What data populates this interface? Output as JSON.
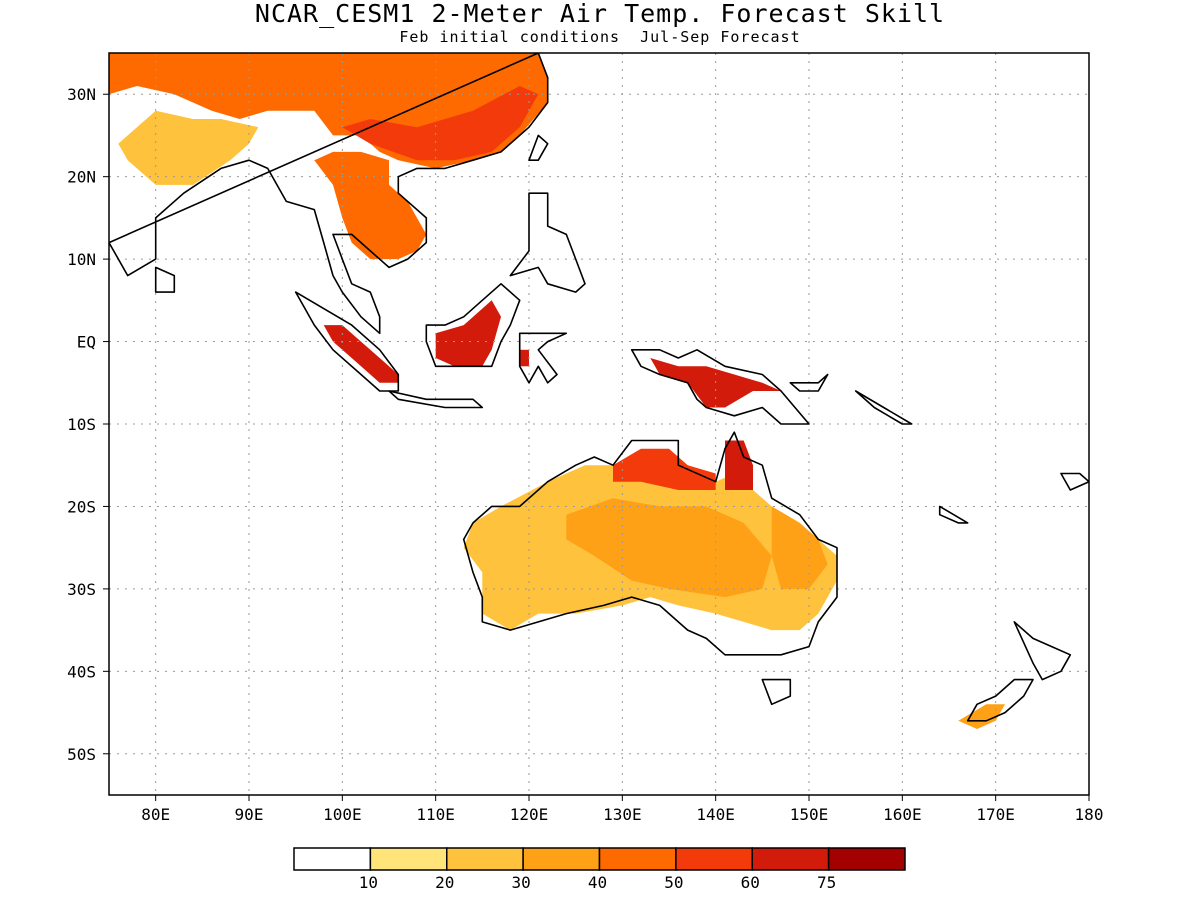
{
  "title": "NCAR_CESM1 2-Meter Air Temp. Forecast Skill",
  "subtitle": "Feb initial conditions  Jul-Sep Forecast",
  "map": {
    "lon_range": [
      75,
      180
    ],
    "lat_range": [
      -55,
      35
    ],
    "grid": true,
    "lon_ticks": [
      "80E",
      "90E",
      "100E",
      "110E",
      "120E",
      "130E",
      "140E",
      "150E",
      "160E",
      "170E",
      "180"
    ],
    "lat_ticks": [
      "30N",
      "20N",
      "10N",
      "EQ",
      "10S",
      "20S",
      "30S",
      "40S",
      "50S"
    ]
  },
  "colorbar": {
    "labels": [
      "10",
      "20",
      "30",
      "40",
      "50",
      "60",
      "75"
    ],
    "colors": [
      "#ffffff",
      "#ffe47a",
      "#ffc23d",
      "#ffa116",
      "#ff6a00",
      "#f23a0b",
      "#d31b0b",
      "#a30000"
    ]
  },
  "skill_regions": [
    {
      "name": "east-asia-north",
      "level": 4
    },
    {
      "name": "china-south",
      "level": 5
    },
    {
      "name": "india-north",
      "level": 2
    },
    {
      "name": "indochina",
      "level": 4
    },
    {
      "name": "sumatra",
      "level": 6
    },
    {
      "name": "borneo",
      "level": 6
    },
    {
      "name": "sulawesi",
      "level": 6
    },
    {
      "name": "new-guinea",
      "level": 6
    },
    {
      "name": "australia-interior",
      "level": 2
    },
    {
      "name": "australia-central",
      "level": 3
    },
    {
      "name": "australia-east",
      "level": 3
    },
    {
      "name": "australia-north",
      "level": 5
    },
    {
      "name": "cape-york",
      "level": 6
    },
    {
      "name": "new-zealand-south",
      "level": 3
    }
  ]
}
